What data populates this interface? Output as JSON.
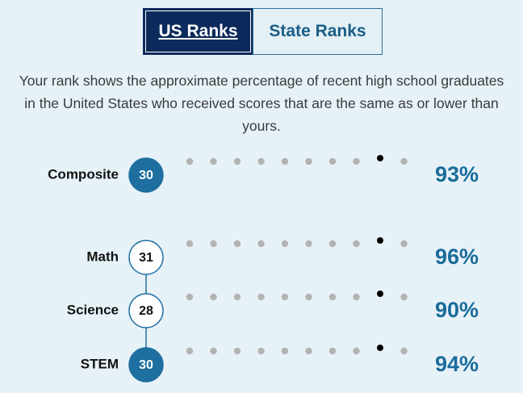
{
  "tabs": [
    "US Ranks",
    "State Ranks"
  ],
  "description": "Your rank shows the approximate percentage of recent high school graduates in the United States who received scores that are the same as or lower than yours.",
  "rows": [
    {
      "label": "Composite",
      "score": "30",
      "rank": "93%"
    },
    {
      "label": "Math",
      "score": "31",
      "rank": "96%"
    },
    {
      "label": "Science",
      "score": "28",
      "rank": "90%"
    },
    {
      "label": "STEM",
      "score": "30",
      "rank": "94%"
    }
  ]
}
